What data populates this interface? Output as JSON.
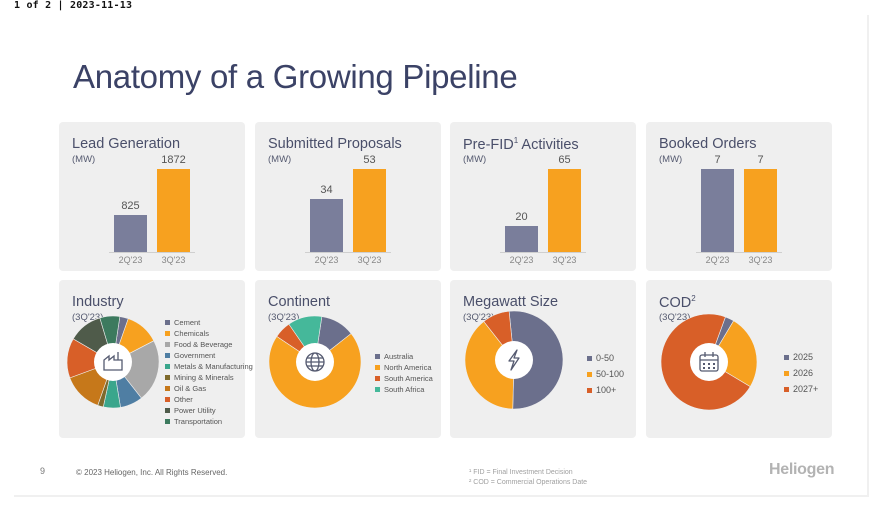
{
  "header": {
    "page_info": "1 of 2 | 2023-11-13"
  },
  "title": "Anatomy of a Growing Pipeline",
  "colors": {
    "prev": "#7a7e9b",
    "curr": "#f7a11f",
    "title": "#3b4266",
    "card": "#efefef"
  },
  "bar_cards": [
    {
      "title": "Lead Generation",
      "sup": "",
      "unit": "(MW)",
      "prev_label": "2Q'23",
      "curr_label": "3Q'23",
      "prev_value": "825",
      "curr_value": "1872"
    },
    {
      "title": "Submitted Proposals",
      "sup": "",
      "unit": "(MW)",
      "prev_label": "2Q'23",
      "curr_label": "3Q'23",
      "prev_value": "34",
      "curr_value": "53"
    },
    {
      "title": "Pre-FID",
      "sup": "1",
      "title_suffix": " Activities",
      "unit": "(MW)",
      "prev_label": "2Q'23",
      "curr_label": "3Q'23",
      "prev_value": "20",
      "curr_value": "65"
    },
    {
      "title": "Booked Orders",
      "sup": "",
      "unit": "(MW)",
      "prev_label": "2Q'23",
      "curr_label": "3Q'23",
      "prev_value": "7",
      "curr_value": "7"
    }
  ],
  "pie_cards": [
    {
      "title": "Industry",
      "sup": "",
      "unit": "(3Q'23)",
      "icon": "factory-icon",
      "legend": [
        "Cement",
        "Chemicals",
        "Food & Beverage",
        "Government",
        "Metals & Manufacturing",
        "Mining & Minerals",
        "Oil & Gas",
        "Other",
        "Power Utility",
        "Transportation"
      ]
    },
    {
      "title": "Continent",
      "sup": "",
      "unit": "(3Q'23)",
      "icon": "globe-icon",
      "legend": [
        "Australia",
        "North America",
        "South America",
        "South Africa"
      ]
    },
    {
      "title": "Megawatt Size",
      "sup": "",
      "unit": "(3Q'23)",
      "icon": "lightning-icon",
      "legend": [
        "0-50",
        "50-100",
        "100+"
      ]
    },
    {
      "title": "COD",
      "sup": "2",
      "unit": "(3Q'23)",
      "icon": "calendar-icon",
      "legend": [
        "2025",
        "2026",
        "2027+"
      ]
    }
  ],
  "chart_data": [
    {
      "type": "bar",
      "title": "Lead Generation",
      "ylabel": "(MW)",
      "categories": [
        "2Q'23",
        "3Q'23"
      ],
      "values": [
        825,
        1872
      ]
    },
    {
      "type": "bar",
      "title": "Submitted Proposals",
      "ylabel": "(MW)",
      "categories": [
        "2Q'23",
        "3Q'23"
      ],
      "values": [
        34,
        53
      ]
    },
    {
      "type": "bar",
      "title": "Pre-FID Activities",
      "ylabel": "(MW)",
      "categories": [
        "2Q'23",
        "3Q'23"
      ],
      "values": [
        20,
        65
      ]
    },
    {
      "type": "bar",
      "title": "Booked Orders",
      "ylabel": "(MW)",
      "categories": [
        "2Q'23",
        "3Q'23"
      ],
      "values": [
        7,
        7
      ]
    },
    {
      "type": "pie",
      "title": "Industry",
      "labels": [
        "Cement",
        "Chemicals",
        "Food & Beverage",
        "Government",
        "Metals & Manufacturing",
        "Mining & Minerals",
        "Oil & Gas",
        "Other",
        "Power Utility",
        "Transportation"
      ],
      "values": [
        3,
        12,
        22,
        8,
        6,
        2,
        14,
        14,
        12,
        7
      ],
      "colors": [
        "#6b6f8c",
        "#f7a11f",
        "#a8a8a8",
        "#4f7ea3",
        "#3aa68c",
        "#7e6a2c",
        "#c6781a",
        "#d85f28",
        "#4f5b4a",
        "#3c7a5e"
      ]
    },
    {
      "type": "pie",
      "title": "Continent",
      "labels": [
        "Australia",
        "North America",
        "South America",
        "South Africa"
      ],
      "values": [
        12,
        70,
        6,
        12
      ],
      "colors": [
        "#6b6f8c",
        "#f7a11f",
        "#d85f28",
        "#45b89a"
      ]
    },
    {
      "type": "pie",
      "title": "Megawatt Size",
      "labels": [
        "0-50",
        "50-100",
        "100+"
      ],
      "values": [
        52,
        39,
        9
      ],
      "colors": [
        "#6b6f8c",
        "#f7a11f",
        "#d85f28"
      ]
    },
    {
      "type": "pie",
      "title": "COD",
      "labels": [
        "2025",
        "2026",
        "2027+"
      ],
      "values": [
        3,
        25,
        72
      ],
      "colors": [
        "#6b6f8c",
        "#f7a11f",
        "#d85f28"
      ]
    }
  ],
  "footer": {
    "page_number": "9",
    "copyright": "© 2023 Heliogen, Inc. All Rights Reserved.",
    "footnote1": "¹ FID = Final Investment Decision",
    "footnote2": "² COD = Commercial Operations Date",
    "logo": "Heliogen"
  }
}
